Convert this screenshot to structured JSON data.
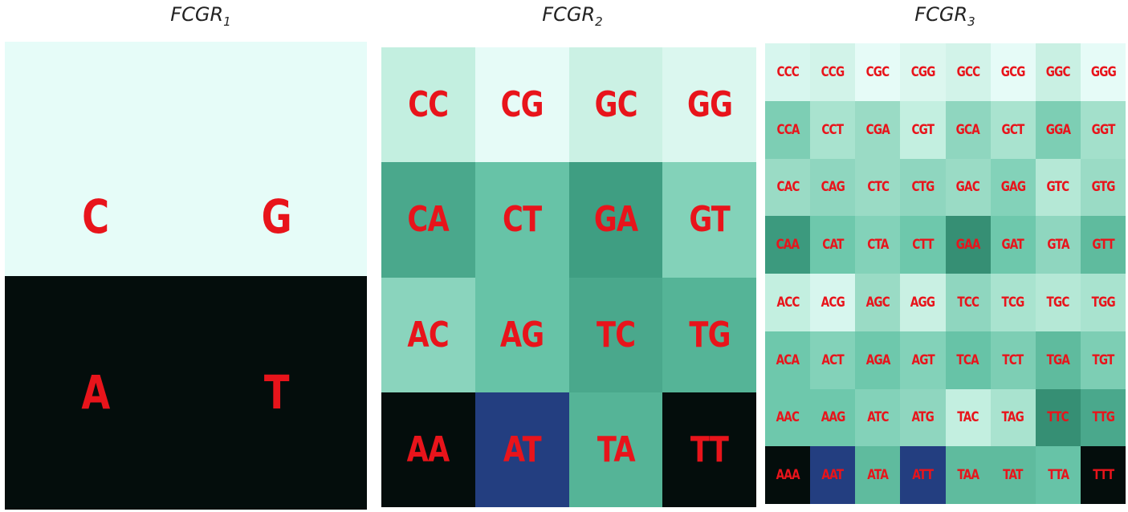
{
  "chart_data": [
    {
      "type": "heatmap",
      "title": "FCGR",
      "subscript": "1",
      "rows": [
        [
          {
            "label": "C",
            "color": "#e6fcf8"
          },
          {
            "label": "G",
            "color": "#e6fcf8"
          }
        ],
        [
          {
            "label": "A",
            "color": "#040d0c"
          },
          {
            "label": "T",
            "color": "#040d0c"
          }
        ]
      ]
    },
    {
      "type": "heatmap",
      "title": "FCGR",
      "subscript": "2",
      "rows": [
        [
          {
            "label": "CC",
            "color": "#c3efe0"
          },
          {
            "label": "CG",
            "color": "#e6fbf7"
          },
          {
            "label": "GC",
            "color": "#cbf1e4"
          },
          {
            "label": "GG",
            "color": "#dbf7ef"
          }
        ],
        [
          {
            "label": "CA",
            "color": "#4aa88c"
          },
          {
            "label": "CT",
            "color": "#67c3a7"
          },
          {
            "label": "GA",
            "color": "#3f9e82"
          },
          {
            "label": "GT",
            "color": "#83d2b9"
          }
        ],
        [
          {
            "label": "AC",
            "color": "#8ad4bd"
          },
          {
            "label": "AG",
            "color": "#67c3a7"
          },
          {
            "label": "TC",
            "color": "#4aa88c"
          },
          {
            "label": "TG",
            "color": "#55b497"
          }
        ],
        [
          {
            "label": "AA",
            "color": "#040d0c"
          },
          {
            "label": "AT",
            "color": "#233e80"
          },
          {
            "label": "TA",
            "color": "#55b497"
          },
          {
            "label": "TT",
            "color": "#040d0c"
          }
        ]
      ]
    },
    {
      "type": "heatmap",
      "title": "FCGR",
      "subscript": "3",
      "rows": [
        [
          {
            "label": "CCC",
            "color": "#d7f6ee"
          },
          {
            "label": "CCG",
            "color": "#d2f3e9"
          },
          {
            "label": "CGC",
            "color": "#e6fbf7"
          },
          {
            "label": "CGG",
            "color": "#dcf7ef"
          },
          {
            "label": "GCC",
            "color": "#d2f3e9"
          },
          {
            "label": "GCG",
            "color": "#e6fbf7"
          },
          {
            "label": "GGC",
            "color": "#c9f0e3"
          },
          {
            "label": "GGG",
            "color": "#e6fbf7"
          }
        ],
        [
          {
            "label": "CCA",
            "color": "#7dceb4"
          },
          {
            "label": "CCT",
            "color": "#a9e3cf"
          },
          {
            "label": "CGA",
            "color": "#9adbc5"
          },
          {
            "label": "CGT",
            "color": "#c3efe0"
          },
          {
            "label": "GCA",
            "color": "#8fd6bf"
          },
          {
            "label": "GCT",
            "color": "#a9e3cf"
          },
          {
            "label": "GGA",
            "color": "#7dceb4"
          },
          {
            "label": "GGT",
            "color": "#a3e0cb"
          }
        ],
        [
          {
            "label": "CAC",
            "color": "#9adbc5"
          },
          {
            "label": "CAG",
            "color": "#8fd6bf"
          },
          {
            "label": "CTC",
            "color": "#9adbc5"
          },
          {
            "label": "CTG",
            "color": "#8fd6bf"
          },
          {
            "label": "GAC",
            "color": "#9adbc5"
          },
          {
            "label": "GAG",
            "color": "#83d2b9"
          },
          {
            "label": "GTC",
            "color": "#b5e8d6"
          },
          {
            "label": "GTG",
            "color": "#9adbc5"
          }
        ],
        [
          {
            "label": "CAA",
            "color": "#3c9a7e"
          },
          {
            "label": "CAT",
            "color": "#6ec8ac"
          },
          {
            "label": "CTA",
            "color": "#83d2b9"
          },
          {
            "label": "CTT",
            "color": "#6ec8ac"
          },
          {
            "label": "GAA",
            "color": "#368f74"
          },
          {
            "label": "GAT",
            "color": "#6ec8ac"
          },
          {
            "label": "GTA",
            "color": "#8fd6bf"
          },
          {
            "label": "GTT",
            "color": "#5fbb9e"
          }
        ],
        [
          {
            "label": "ACC",
            "color": "#c3efe0"
          },
          {
            "label": "ACG",
            "color": "#d7f6ee"
          },
          {
            "label": "AGC",
            "color": "#9adbc5"
          },
          {
            "label": "AGG",
            "color": "#c9f0e3"
          },
          {
            "label": "TCC",
            "color": "#8fd6bf"
          },
          {
            "label": "TCG",
            "color": "#a9e3cf"
          },
          {
            "label": "TGC",
            "color": "#b5e8d6"
          },
          {
            "label": "TGG",
            "color": "#a9e3cf"
          }
        ],
        [
          {
            "label": "ACA",
            "color": "#6ec8ac"
          },
          {
            "label": "ACT",
            "color": "#83d2b9"
          },
          {
            "label": "AGA",
            "color": "#6ec8ac"
          },
          {
            "label": "AGT",
            "color": "#83d2b9"
          },
          {
            "label": "TCA",
            "color": "#67c3a7"
          },
          {
            "label": "TCT",
            "color": "#7dceb4"
          },
          {
            "label": "TGA",
            "color": "#5fbb9e"
          },
          {
            "label": "TGT",
            "color": "#7dceb4"
          }
        ],
        [
          {
            "label": "AAC",
            "color": "#6ec8ac"
          },
          {
            "label": "AAG",
            "color": "#6ec8ac"
          },
          {
            "label": "ATC",
            "color": "#83d2b9"
          },
          {
            "label": "ATG",
            "color": "#8fd6bf"
          },
          {
            "label": "TAC",
            "color": "#c3efe0"
          },
          {
            "label": "TAG",
            "color": "#a9e3cf"
          },
          {
            "label": "TTC",
            "color": "#368f74"
          },
          {
            "label": "TTG",
            "color": "#4aa88c"
          }
        ],
        [
          {
            "label": "AAA",
            "color": "#040d0c"
          },
          {
            "label": "AAT",
            "color": "#233e80"
          },
          {
            "label": "ATA",
            "color": "#5fbb9e"
          },
          {
            "label": "ATT",
            "color": "#233e80"
          },
          {
            "label": "TAA",
            "color": "#5fbb9e"
          },
          {
            "label": "TAT",
            "color": "#5fbb9e"
          },
          {
            "label": "TTA",
            "color": "#67c3a7"
          },
          {
            "label": "TTT",
            "color": "#040d0c"
          }
        ]
      ]
    }
  ]
}
